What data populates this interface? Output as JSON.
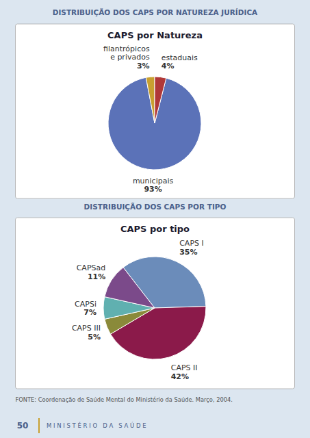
{
  "chart_data": [
    {
      "type": "pie",
      "title": "DISTRIBUIÇÃO DOS CAPS POR NATUREZA JURÍDICA",
      "subtitle": "CAPS por Natureza",
      "categories": [
        "municipais",
        "filantrópicos\ne privados",
        "estaduais"
      ],
      "values": [
        93,
        3,
        4
      ],
      "value_labels": [
        "93%",
        "3%",
        "4%"
      ],
      "colors": [
        "#5b72b8",
        "#c8a030",
        "#b03838"
      ],
      "data_labels": true
    },
    {
      "type": "pie",
      "title": "DISTRIBUIÇÃO DOS CAPS POR TIPO",
      "subtitle": "CAPS por tipo",
      "categories": [
        "CAPS I",
        "CAPS II",
        "CAPS III",
        "CAPSi",
        "CAPSad"
      ],
      "values": [
        35,
        42,
        5,
        7,
        11
      ],
      "value_labels": [
        "35%",
        "42%",
        "5%",
        "7%",
        "11%"
      ],
      "colors": [
        "#6b8cba",
        "#8b1a4a",
        "#8a8a3a",
        "#60b0b0",
        "#7b4a8a"
      ],
      "data_labels": true
    }
  ],
  "footnote": "FONTE: Coordenação de Saúde Mental do Ministério da Saúde. Março, 2004.",
  "page_number": "50",
  "footer": "M I N I S T É R I O   D A   S A Ú D E"
}
